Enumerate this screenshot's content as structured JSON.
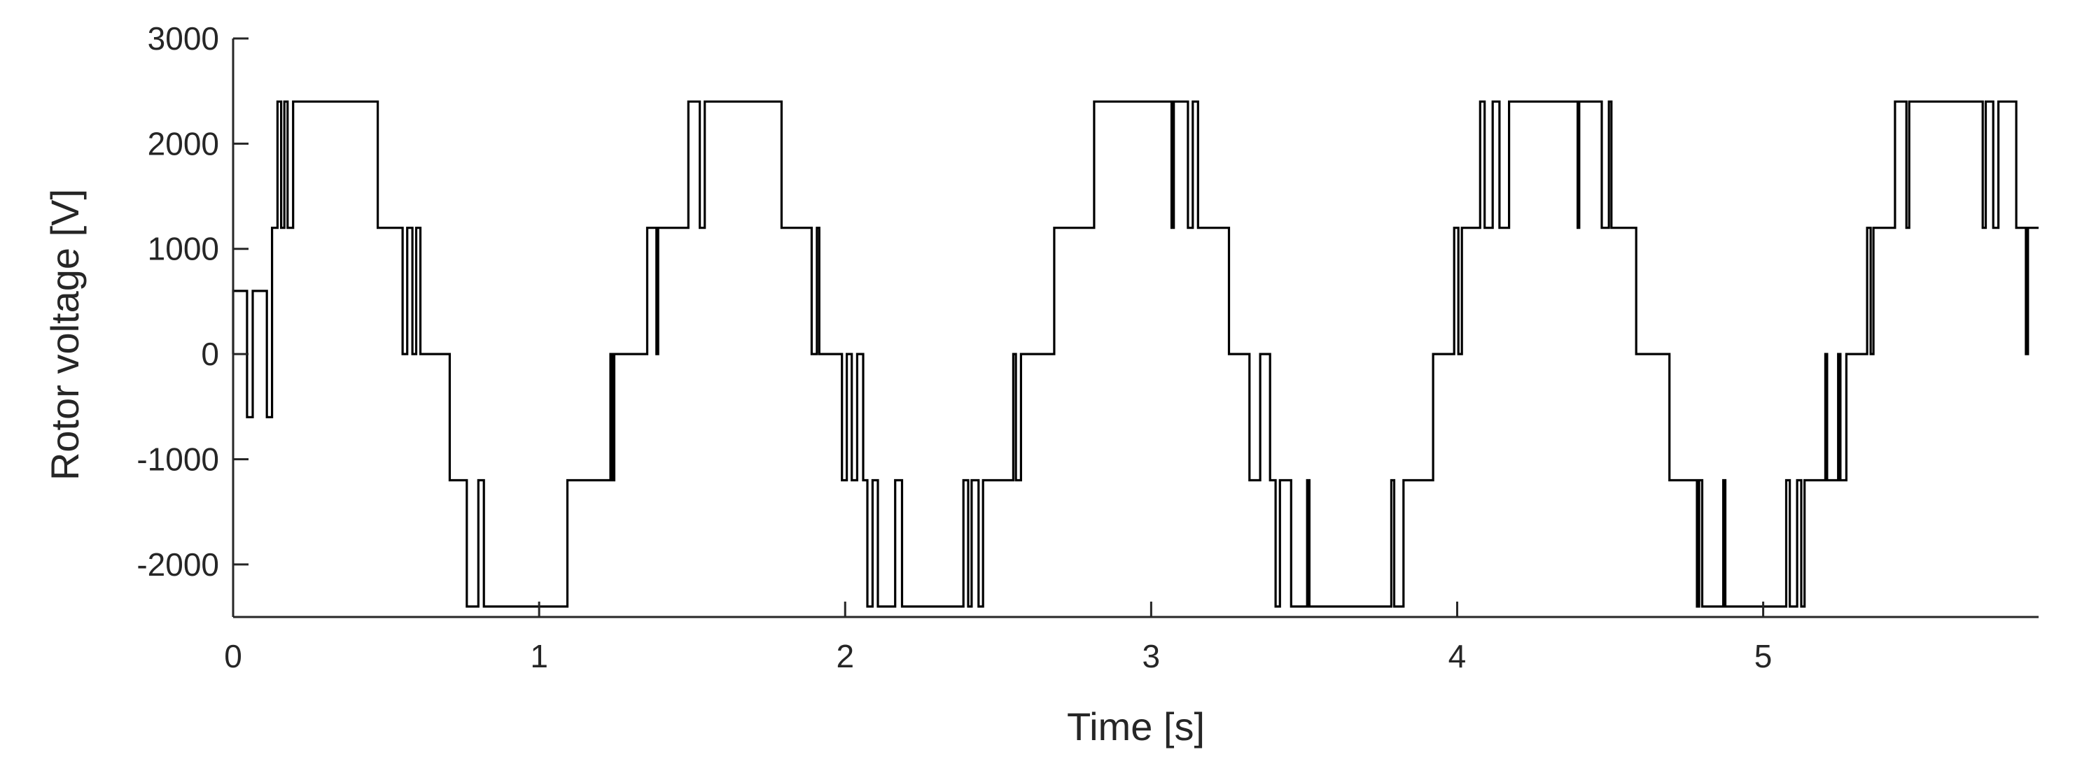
{
  "chart_data": {
    "type": "line",
    "title": "",
    "xlabel": "Time [s]",
    "ylabel": "Rotor voltage [V]",
    "xlim": [
      0,
      5.9
    ],
    "ylim": [
      -2500,
      3000
    ],
    "xticks": [
      0,
      1,
      2,
      3,
      4,
      5
    ],
    "yticks": [
      -2000,
      -1000,
      0,
      1000,
      2000,
      3000
    ],
    "grid": false,
    "legend": "none",
    "line_color": "#000000",
    "series": [
      {
        "switching_levels": [
          -2400,
          -1200,
          0,
          1200,
          2400
        ],
        "startup": [
          {
            "t_start": 0.0,
            "t_end": 0.12,
            "levels": [
              -600,
              600
            ]
          }
        ],
        "fundamental_period": 1.33,
        "fundamental_amplitude": 2400,
        "pwm_period": 0.01,
        "x_range": [
          0,
          5.9
        ]
      }
    ]
  }
}
